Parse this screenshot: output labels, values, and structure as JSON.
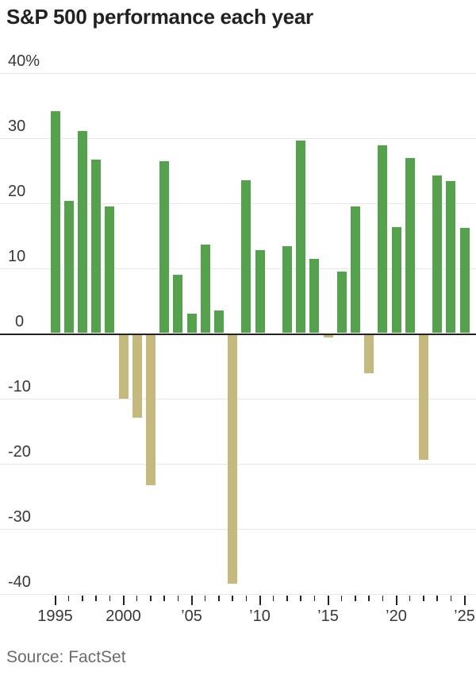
{
  "title": "S&P 500 performance each year",
  "source": "Source: FactSet",
  "colors": {
    "positive": "#55a24c",
    "negative": "#c6b97d",
    "axis": "#222222",
    "gridline": "#e7e7e7",
    "tick_label": "#383838",
    "title": "#222222",
    "source": "#6b6b6b",
    "background": "#ffffff"
  },
  "chart_data": {
    "type": "bar",
    "title": "S&P 500 performance each year",
    "categories": [
      1995,
      1996,
      1997,
      1998,
      1999,
      2000,
      2001,
      2002,
      2003,
      2004,
      2005,
      2006,
      2007,
      2008,
      2009,
      2010,
      2011,
      2012,
      2013,
      2014,
      2015,
      2016,
      2017,
      2018,
      2019,
      2020,
      2021,
      2022,
      2023,
      2024,
      2025
    ],
    "values": [
      34.1,
      20.3,
      31.0,
      26.7,
      19.5,
      -10.1,
      -13.0,
      -23.4,
      26.4,
      9.0,
      3.0,
      13.6,
      3.5,
      -38.5,
      23.5,
      12.8,
      0.0,
      13.4,
      29.6,
      11.4,
      -0.7,
      9.5,
      19.4,
      -6.2,
      28.9,
      16.3,
      26.9,
      -19.4,
      24.2,
      23.3,
      16.2
    ],
    "unit": "%",
    "xlabel": "",
    "ylabel": "",
    "ylim": [
      -40,
      40
    ],
    "yticks": [
      40,
      30,
      20,
      10,
      0,
      -10,
      -20,
      -30,
      -40
    ],
    "ytick_labels": [
      "40%",
      "30",
      "20",
      "10",
      "0",
      "-10",
      "-20",
      "-30",
      "-40"
    ],
    "xticks_major": [
      1995,
      2000,
      2005,
      2010,
      2015,
      2020,
      2025
    ],
    "xtick_labels": [
      "1995",
      "2000",
      "’05",
      "’10",
      "’15",
      "’20",
      "’25"
    ],
    "grid": true,
    "legend": false,
    "positive_color": "#55a24c",
    "negative_color": "#c6b97d"
  }
}
